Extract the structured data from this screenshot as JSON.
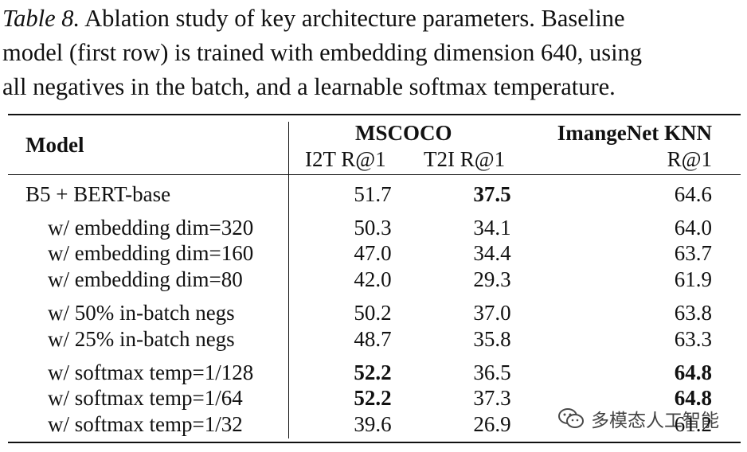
{
  "caption": {
    "label": "Table 8.",
    "lines": [
      " Ablation study of key architecture parameters. Baseline",
      "model (first row) is trained with embedding dimension 640, using",
      "all negatives in the batch, and a learnable softmax temperature."
    ]
  },
  "table": {
    "header": {
      "model": "Model",
      "group1": "MSCOCO",
      "group2": "ImangeNet KNN",
      "col1": "I2T R@1",
      "col2": "T2I R@1",
      "col3": "R@1"
    },
    "rows": [
      {
        "model": "B5 + BERT-base",
        "i2t": "51.7",
        "t2i": "37.5",
        "knn": "64.6"
      },
      {
        "model": "w/ embedding dim=320",
        "i2t": "50.3",
        "t2i": "34.1",
        "knn": "64.0"
      },
      {
        "model": "w/ embedding dim=160",
        "i2t": "47.0",
        "t2i": "34.4",
        "knn": "63.7"
      },
      {
        "model": "w/ embedding dim=80",
        "i2t": "42.0",
        "t2i": "29.3",
        "knn": "61.9"
      },
      {
        "model": "w/ 50% in-batch negs",
        "i2t": "50.2",
        "t2i": "37.0",
        "knn": "63.8"
      },
      {
        "model": "w/ 25% in-batch negs",
        "i2t": "48.7",
        "t2i": "35.8",
        "knn": "63.3"
      },
      {
        "model": "w/ softmax temp=1/128",
        "i2t": "52.2",
        "t2i": "36.5",
        "knn": "64.8"
      },
      {
        "model": "w/ softmax temp=1/64",
        "i2t": "52.2",
        "t2i": "37.3",
        "knn": "64.8"
      },
      {
        "model": "w/ softmax temp=1/32",
        "i2t": "39.6",
        "t2i": "26.9",
        "knn": "61.2"
      }
    ]
  },
  "watermark": {
    "icon": "wechat-icon",
    "text": "多模态人工智能"
  }
}
